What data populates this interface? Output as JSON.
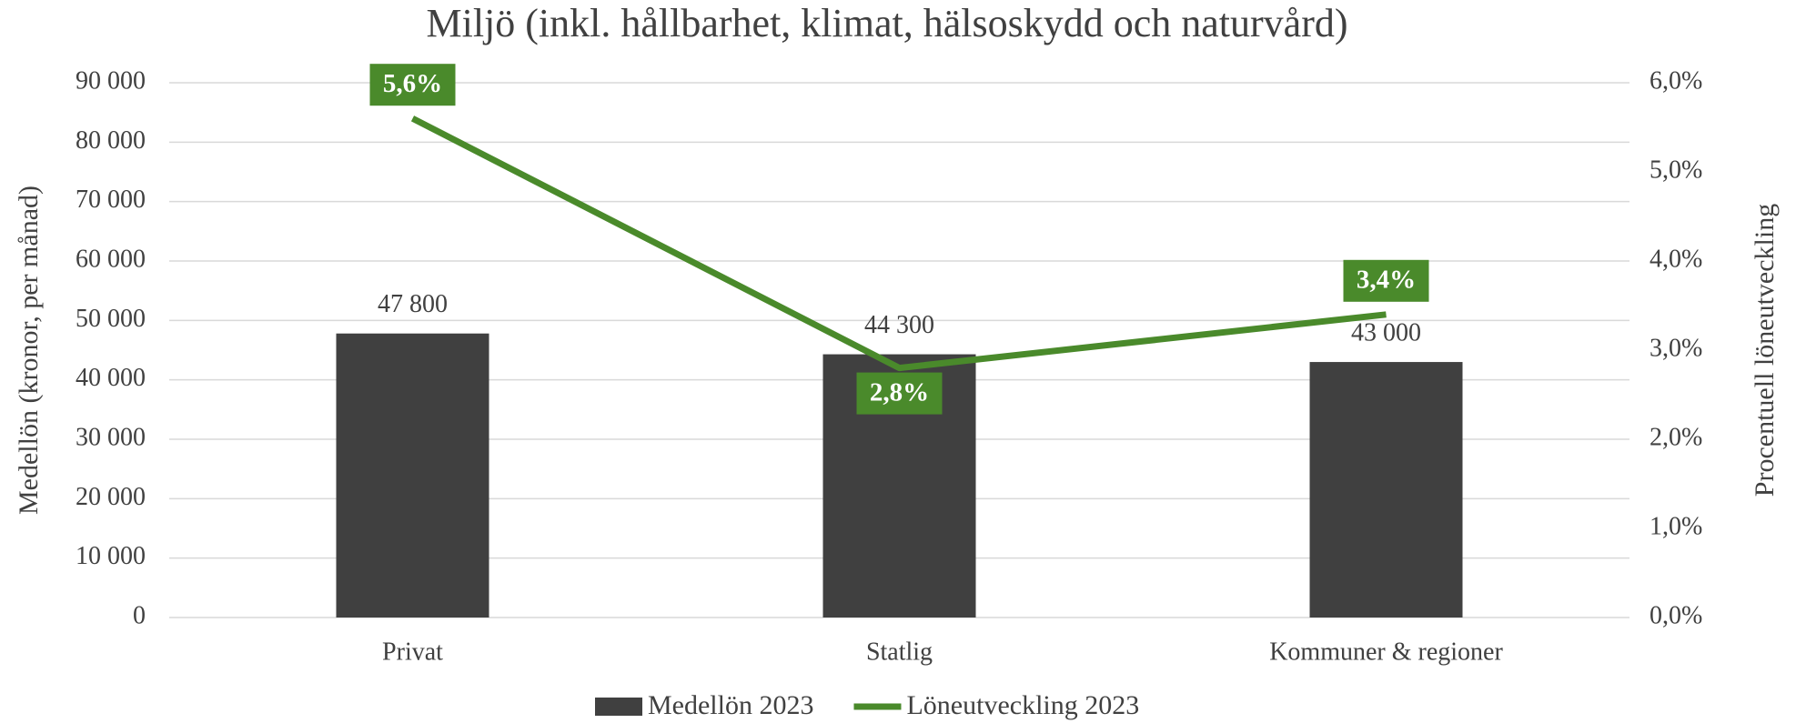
{
  "chart_data": {
    "type": "bar",
    "title": "Miljö (inkl. hållbarhet, klimat, hälsoskydd och naturvård)",
    "y_label": "Medellön (kronor, per månad)",
    "y2_label": "Procentuell löneutveckling",
    "categories": [
      "Privat",
      "Statlig",
      "Kommuner & regioner"
    ],
    "series": [
      {
        "name": "Medellön 2023",
        "type": "bar",
        "color": "#404040",
        "values": [
          47800,
          44300,
          43000
        ],
        "value_labels": [
          "47 800",
          "44 300",
          "43 000"
        ]
      },
      {
        "name": "Löneutveckling 2023",
        "type": "line",
        "axis": "y2",
        "color": "#4a8a2b",
        "values": [
          5.6,
          2.8,
          3.4
        ],
        "value_labels": [
          "5,6%",
          "2,8%",
          "3,4%"
        ]
      }
    ],
    "ylim": [
      0,
      90000
    ],
    "yticks": [
      {
        "value": 0,
        "label": "0"
      },
      {
        "value": 10000,
        "label": "10 000"
      },
      {
        "value": 20000,
        "label": "20 000"
      },
      {
        "value": 30000,
        "label": "30 000"
      },
      {
        "value": 40000,
        "label": "40 000"
      },
      {
        "value": 50000,
        "label": "50 000"
      },
      {
        "value": 60000,
        "label": "60 000"
      },
      {
        "value": 70000,
        "label": "70 000"
      },
      {
        "value": 80000,
        "label": "80 000"
      },
      {
        "value": 90000,
        "label": "90 000"
      }
    ],
    "y2lim": [
      0,
      6
    ],
    "y2ticks": [
      {
        "value": 0,
        "label": "0,0%"
      },
      {
        "value": 1,
        "label": "1,0%"
      },
      {
        "value": 2,
        "label": "2,0%"
      },
      {
        "value": 3,
        "label": "3,0%"
      },
      {
        "value": 4,
        "label": "4,0%"
      },
      {
        "value": 5,
        "label": "5,0%"
      },
      {
        "value": 6,
        "label": "6,0%"
      }
    ],
    "grid": true,
    "legend": "bottom"
  }
}
